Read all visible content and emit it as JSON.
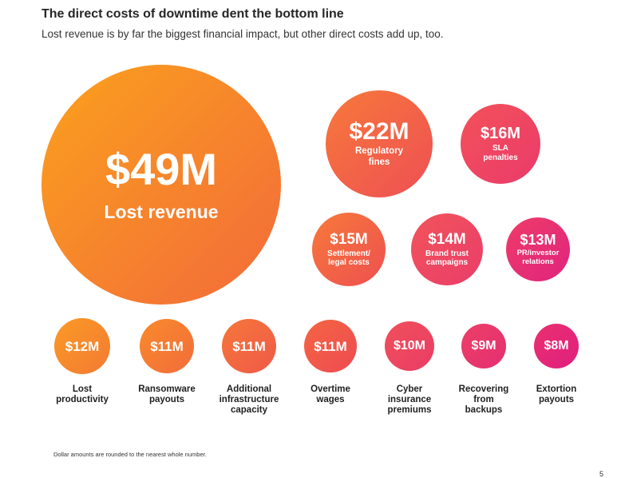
{
  "header": {
    "title": "The direct costs of downtime dent the bottom line",
    "subtitle": "Lost revenue is by far the biggest financial impact, but other direct costs add up, too."
  },
  "chart_data": {
    "type": "bubble",
    "unit": "$M",
    "items": [
      {
        "value": 49,
        "display": "$49M",
        "label": "Lost revenue",
        "color_start": "#fba11d",
        "color_end": "#f26a3a"
      },
      {
        "value": 22,
        "display": "$22M",
        "label": "Regulatory\nfines",
        "color_start": "#f7793a",
        "color_end": "#ee4f54"
      },
      {
        "value": 16,
        "display": "$16M",
        "label": "SLA\npenalties",
        "color_start": "#f3525a",
        "color_end": "#ea3a6a"
      },
      {
        "value": 15,
        "display": "$15M",
        "label": "Settlement/\nlegal costs",
        "color_start": "#f7793a",
        "color_end": "#ee5050"
      },
      {
        "value": 14,
        "display": "$14M",
        "label": "Brand trust\ncampaigns",
        "color_start": "#f2545a",
        "color_end": "#e93d6a"
      },
      {
        "value": 13,
        "display": "$13M",
        "label": "PR/investor\nrelations",
        "color_start": "#ee3c68",
        "color_end": "#e0237e"
      },
      {
        "value": 12,
        "display": "$12M",
        "label": "Lost\nproductivity",
        "color_start": "#fb9a25",
        "color_end": "#f37a33"
      },
      {
        "value": 11,
        "display": "$11M",
        "label": "Ransomware\npayouts",
        "color_start": "#f98a2c",
        "color_end": "#f26d3a"
      },
      {
        "value": 11,
        "display": "$11M",
        "label": "Additional\ninfrastructure\ncapacity",
        "color_start": "#f6763a",
        "color_end": "#ef5a48"
      },
      {
        "value": 11,
        "display": "$11M",
        "label": "Overtime\nwages",
        "color_start": "#f46542",
        "color_end": "#ee4b52"
      },
      {
        "value": 10,
        "display": "$10M",
        "label": "Cyber\ninsurance\npremiums",
        "color_start": "#f0505a",
        "color_end": "#ea3c66"
      },
      {
        "value": 9,
        "display": "$9M",
        "label": "Recovering\nfrom\nbackups",
        "color_start": "#ec3f67",
        "color_end": "#e52f72"
      },
      {
        "value": 8,
        "display": "$8M",
        "label": "Extortion\npayouts",
        "color_start": "#e9306f",
        "color_end": "#e01f7f"
      }
    ]
  },
  "footnote": "Dollar amounts are rounded to the nearest whole number.",
  "page_number": "5"
}
